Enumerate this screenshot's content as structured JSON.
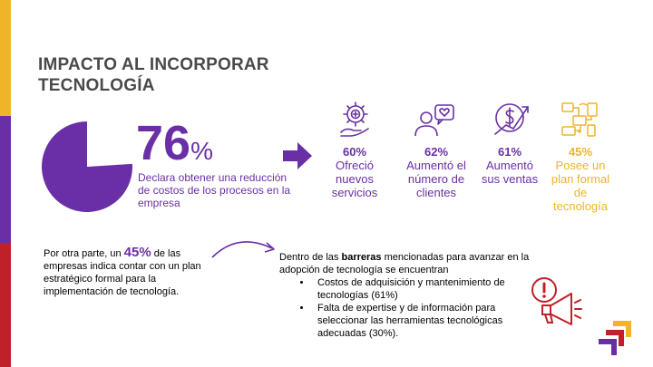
{
  "colors": {
    "purple": "#6a2fa6",
    "yellow": "#f0b429",
    "red": "#c0202a",
    "dark_text": "#4a4a4a"
  },
  "slide": {
    "title": "IMPACTO AL INCORPORAR TECNOLOGÍA",
    "main_stat": {
      "value": "76",
      "unit": "%",
      "description": "Declara obtener una reducción de costos de los procesos en la empresa",
      "fraction": 0.76
    },
    "stats": [
      {
        "value": "60%",
        "label": "Ofreció nuevos servicios",
        "icon": "gear-plus-icon",
        "color": "purple"
      },
      {
        "value": "62%",
        "label": "Aumentó el número de clientes",
        "icon": "user-heart-icon",
        "color": "purple"
      },
      {
        "value": "61%",
        "label": "Aumentó sus ventas",
        "icon": "money-growth-icon",
        "color": "purple"
      },
      {
        "value": "45%",
        "label": "Posee un plan formal de tecnología",
        "icon": "tech-devices-icon",
        "color": "yellow"
      }
    ],
    "plan_paragraph": {
      "before": "Por otra parte, un ",
      "highlight": "45%",
      "after": " de las empresas indica contar con un plan estratégico formal para la implementación de tecnología."
    },
    "barriers": {
      "intro_before": "Dentro de las ",
      "intro_bold": "barreras",
      "intro_after": " mencionadas para avanzar en la adopción de tecnología se encuentran",
      "items": [
        "Costos de adquisición y mantenimiento de tecnologías (61%)",
        "Falta de expertise y de información para seleccionar las herramientas tecnológicas adecuadas (30%)."
      ]
    },
    "icons": {
      "arrow": "right-arrow-icon",
      "alert": "alert-megaphone-icon",
      "logo": "brand-chevrons-logo"
    }
  }
}
